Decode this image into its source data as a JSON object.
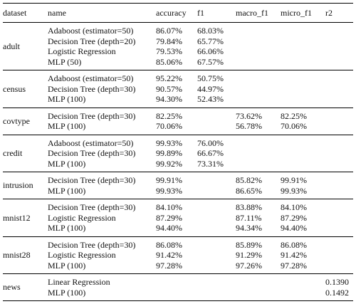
{
  "table": {
    "columns": [
      "dataset",
      "name",
      "accuracy",
      "f1",
      "macro_f1",
      "micro_f1",
      "r2"
    ],
    "groups": [
      {
        "dataset": "adult",
        "rows": [
          [
            "Adaboost (estimator=50)",
            "86.07%",
            "68.03%",
            null,
            null,
            null
          ],
          [
            "Decision Tree (depth=20)",
            "79.84%",
            "65.77%",
            null,
            null,
            null
          ],
          [
            "Logistic Regression",
            "79.53%",
            "66.06%",
            null,
            null,
            null
          ],
          [
            "MLP (50)",
            "85.06%",
            "67.57%",
            null,
            null,
            null
          ]
        ]
      },
      {
        "dataset": "census",
        "rows": [
          [
            "Adaboost (estimator=50)",
            "95.22%",
            "50.75%",
            null,
            null,
            null
          ],
          [
            "Decision Tree (depth=30)",
            "90.57%",
            "44.97%",
            null,
            null,
            null
          ],
          [
            "MLP (100)",
            "94.30%",
            "52.43%",
            null,
            null,
            null
          ]
        ]
      },
      {
        "dataset": "covtype",
        "rows": [
          [
            "Decision Tree (depth=30)",
            "82.25%",
            null,
            "73.62%",
            "82.25%",
            null
          ],
          [
            "MLP (100)",
            "70.06%",
            null,
            "56.78%",
            "70.06%",
            null
          ]
        ]
      },
      {
        "dataset": "credit",
        "rows": [
          [
            "Adaboost (estimator=50)",
            "99.93%",
            "76.00%",
            null,
            null,
            null
          ],
          [
            "Decision Tree (depth=30)",
            "99.89%",
            "66.67%",
            null,
            null,
            null
          ],
          [
            "MLP (100)",
            "99.92%",
            "73.31%",
            null,
            null,
            null
          ]
        ]
      },
      {
        "dataset": "intrusion",
        "rows": [
          [
            "Decision Tree (depth=30)",
            "99.91%",
            null,
            "85.82%",
            "99.91%",
            null
          ],
          [
            "MLP (100)",
            "99.93%",
            null,
            "86.65%",
            "99.93%",
            null
          ]
        ]
      },
      {
        "dataset": "mnist12",
        "rows": [
          [
            "Decision Tree (depth=30)",
            "84.10%",
            null,
            "83.88%",
            "84.10%",
            null
          ],
          [
            "Logistic Regression",
            "87.29%",
            null,
            "87.11%",
            "87.29%",
            null
          ],
          [
            "MLP (100)",
            "94.40%",
            null,
            "94.34%",
            "94.40%",
            null
          ]
        ]
      },
      {
        "dataset": "mnist28",
        "rows": [
          [
            "Decision Tree (depth=30)",
            "86.08%",
            null,
            "85.89%",
            "86.08%",
            null
          ],
          [
            "Logistic Regression",
            "91.42%",
            null,
            "91.29%",
            "91.42%",
            null
          ],
          [
            "MLP (100)",
            "97.28%",
            null,
            "97.26%",
            "97.28%",
            null
          ]
        ]
      },
      {
        "dataset": "news",
        "rows": [
          [
            "Linear Regression",
            null,
            null,
            null,
            null,
            "0.1390"
          ],
          [
            "MLP (100)",
            null,
            null,
            null,
            null,
            "0.1492"
          ]
        ]
      }
    ]
  }
}
